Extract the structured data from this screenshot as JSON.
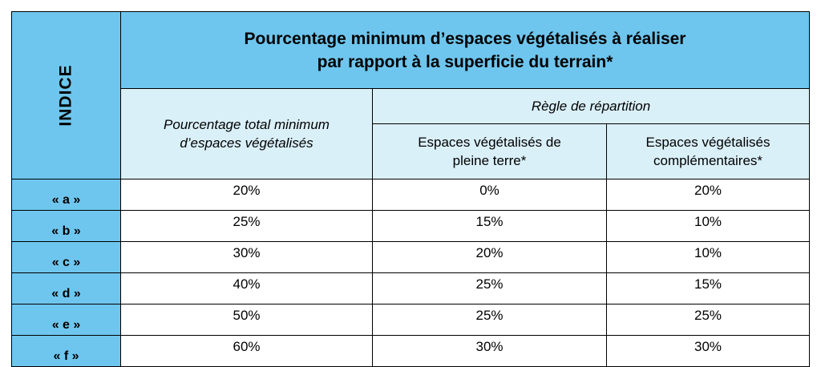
{
  "header": {
    "indice_label": "INDICE",
    "title_line1": "Pourcentage minimum d’espaces végétalisés à réaliser",
    "title_line2": "par rapport à la superficie du terrain*",
    "total_line1": "Pourcentage total minimum",
    "total_line2": "d’espaces végétalisés",
    "rule_label": "Règle de répartition",
    "pleine_line1": "Espaces végétalisés de",
    "pleine_line2": "pleine terre*",
    "compl_line1": "Espaces végétalisés",
    "compl_line2": "complémentaires*"
  },
  "rows": [
    {
      "indice": "« a »",
      "total": "20%",
      "pleine": "0%",
      "compl": "20%"
    },
    {
      "indice": "« b »",
      "total": "25%",
      "pleine": "15%",
      "compl": "10%"
    },
    {
      "indice": "« c »",
      "total": "30%",
      "pleine": "20%",
      "compl": "10%"
    },
    {
      "indice": "« d »",
      "total": "40%",
      "pleine": "25%",
      "compl": "15%"
    },
    {
      "indice": "« e »",
      "total": "50%",
      "pleine": "25%",
      "compl": "25%"
    },
    {
      "indice": "« f »",
      "total": "60%",
      "pleine": "30%",
      "compl": "30%"
    }
  ],
  "colors": {
    "header_blue": "#6ec6ee",
    "subheader_light_blue": "#daf0f9"
  }
}
